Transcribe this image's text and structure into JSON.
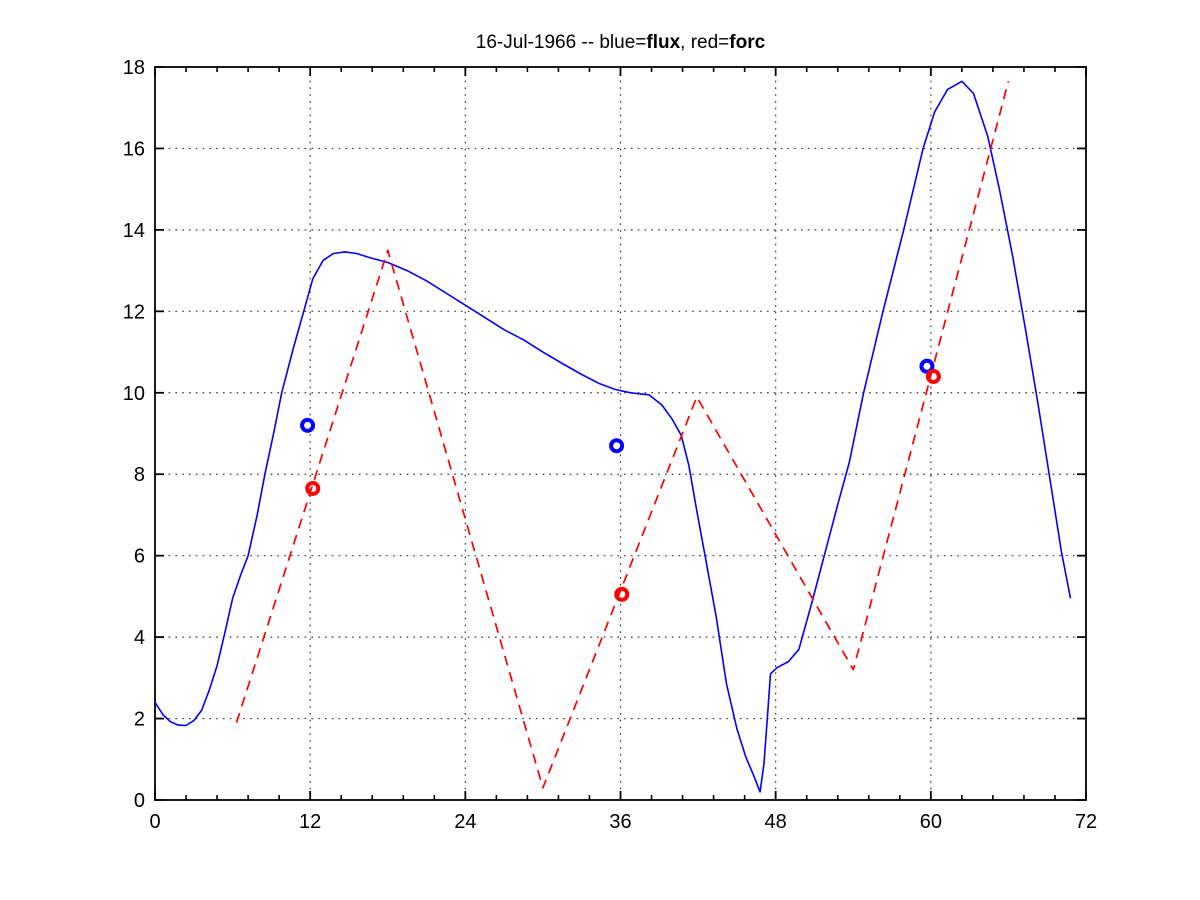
{
  "figure": {
    "background": "#ffffff",
    "axis_color": "#000000",
    "grid_color": "#333333"
  },
  "title": {
    "full": "16-Jul-1966 -- blue=flux, red=forc",
    "parts": [
      {
        "text": "16-Jul-1966 -- blue=",
        "bold": false
      },
      {
        "text": "flux",
        "bold": true
      },
      {
        "text": ", red=",
        "bold": false
      },
      {
        "text": "forc",
        "bold": true
      }
    ]
  },
  "chart_data": {
    "type": "line",
    "title": "16-Jul-1966 -- blue=flux, red=forc",
    "xlabel": "",
    "ylabel": "",
    "xlim": [
      0,
      72
    ],
    "ylim": [
      0,
      18
    ],
    "grid": true,
    "x_major_ticks": [
      0,
      12,
      24,
      36,
      48,
      60,
      72
    ],
    "x_tick_labels": [
      "0",
      "12",
      "24",
      "36",
      "48",
      "60",
      "72"
    ],
    "x_minor_tick_step": 2.4,
    "y_ticks": [
      0,
      2,
      4,
      6,
      8,
      10,
      12,
      14,
      16,
      18
    ],
    "y_tick_labels": [
      "0",
      "2",
      "4",
      "6",
      "8",
      "10",
      "12",
      "14",
      "16",
      "18"
    ],
    "series": [
      {
        "name": "flux",
        "color": "#0000ff",
        "style": "solid",
        "width": 1.6,
        "points": [
          [
            0,
            2.4
          ],
          [
            0.6,
            2.1
          ],
          [
            1.2,
            1.92
          ],
          [
            1.8,
            1.84
          ],
          [
            2.4,
            1.83
          ],
          [
            3.0,
            1.95
          ],
          [
            3.6,
            2.2
          ],
          [
            4.2,
            2.7
          ],
          [
            4.8,
            3.3
          ],
          [
            5.4,
            4.1
          ],
          [
            6.0,
            4.95
          ],
          [
            6.6,
            5.5
          ],
          [
            7.2,
            6.0
          ],
          [
            7.9,
            7.0
          ],
          [
            8.5,
            8.0
          ],
          [
            9.2,
            9.05
          ],
          [
            9.8,
            10.0
          ],
          [
            10.7,
            11.1
          ],
          [
            11.5,
            12.0
          ],
          [
            12.2,
            12.8
          ],
          [
            13.0,
            13.25
          ],
          [
            13.8,
            13.42
          ],
          [
            14.7,
            13.46
          ],
          [
            15.6,
            13.42
          ],
          [
            16.6,
            13.32
          ],
          [
            18.0,
            13.2
          ],
          [
            19.5,
            13.0
          ],
          [
            21.0,
            12.75
          ],
          [
            22.5,
            12.45
          ],
          [
            24.0,
            12.15
          ],
          [
            25.5,
            11.85
          ],
          [
            27.0,
            11.55
          ],
          [
            28.5,
            11.3
          ],
          [
            30.0,
            11.0
          ],
          [
            31.5,
            10.72
          ],
          [
            33.0,
            10.45
          ],
          [
            34.4,
            10.22
          ],
          [
            35.6,
            10.08
          ],
          [
            36.8,
            10.0
          ],
          [
            38.2,
            9.95
          ],
          [
            39.2,
            9.7
          ],
          [
            40.0,
            9.35
          ],
          [
            40.7,
            8.95
          ],
          [
            41.3,
            8.2
          ],
          [
            41.9,
            7.1
          ],
          [
            42.6,
            5.9
          ],
          [
            43.4,
            4.5
          ],
          [
            44.2,
            2.85
          ],
          [
            45.0,
            1.75
          ],
          [
            45.7,
            1.05
          ],
          [
            46.3,
            0.6
          ],
          [
            46.8,
            0.2
          ],
          [
            47.1,
            0.9
          ],
          [
            47.35,
            2.0
          ],
          [
            47.6,
            3.1
          ],
          [
            48.1,
            3.25
          ],
          [
            49.0,
            3.4
          ],
          [
            49.8,
            3.7
          ],
          [
            50.8,
            4.85
          ],
          [
            51.8,
            6.05
          ],
          [
            52.8,
            7.25
          ],
          [
            53.7,
            8.3
          ],
          [
            54.8,
            10.0
          ],
          [
            56.3,
            12.0
          ],
          [
            57.9,
            14.0
          ],
          [
            59.4,
            16.0
          ],
          [
            60.3,
            16.9
          ],
          [
            61.3,
            17.45
          ],
          [
            62.4,
            17.65
          ],
          [
            63.3,
            17.35
          ],
          [
            64.4,
            16.3
          ],
          [
            65.3,
            15.0
          ],
          [
            66.3,
            13.4
          ],
          [
            67.3,
            11.6
          ],
          [
            68.3,
            9.7
          ],
          [
            69.3,
            7.7
          ],
          [
            70.1,
            6.1
          ],
          [
            70.8,
            4.95
          ]
        ]
      },
      {
        "name": "forc",
        "color": "#ff0000",
        "style": "dashed",
        "width": 1.7,
        "points": [
          [
            6.3,
            1.9
          ],
          [
            18,
            13.5
          ],
          [
            30,
            0.3
          ],
          [
            41.9,
            9.9
          ],
          [
            54,
            3.2
          ],
          [
            66,
            17.65
          ]
        ]
      }
    ],
    "markers": [
      {
        "name": "flux-observations",
        "color": "#0000ff",
        "shape": "circle",
        "points": [
          [
            11.8,
            9.2
          ],
          [
            35.7,
            8.7
          ],
          [
            59.7,
            10.65
          ]
        ]
      },
      {
        "name": "forc-observations",
        "color": "#ff0000",
        "shape": "circle",
        "points": [
          [
            12.2,
            7.65
          ],
          [
            36.1,
            5.05
          ],
          [
            60.2,
            10.4
          ]
        ]
      }
    ],
    "legend": "in-title"
  }
}
